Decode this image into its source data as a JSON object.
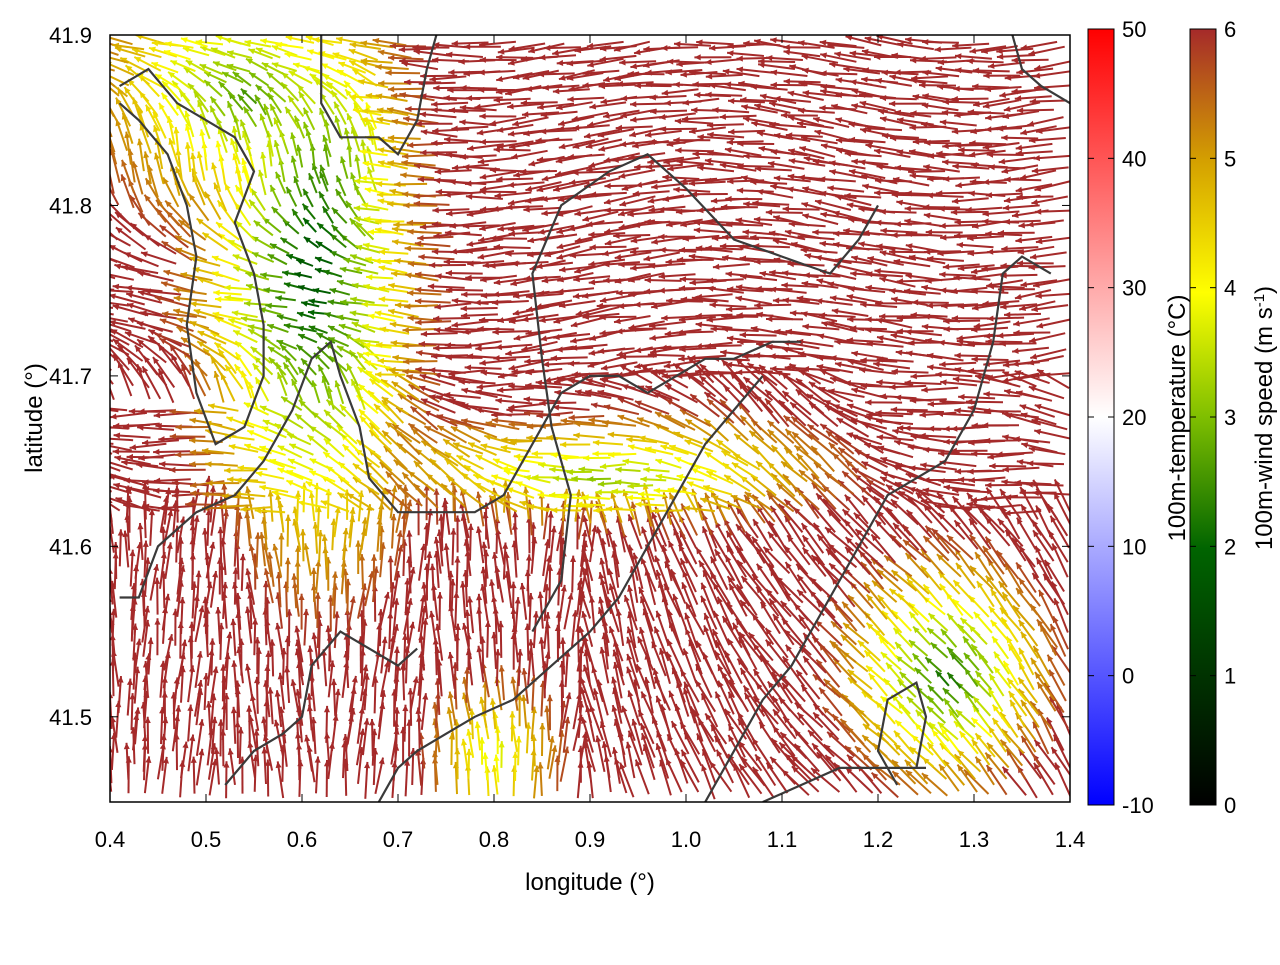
{
  "chart_data": {
    "type": "vector-field",
    "title": "",
    "xlabel": "longitude (°)",
    "ylabel": "latitude (°)",
    "xlim": [
      0.4,
      1.4
    ],
    "ylim": [
      41.45,
      41.9
    ],
    "xticks": [
      0.4,
      0.5,
      0.6,
      0.7,
      0.8,
      0.9,
      1.0,
      1.1,
      1.2,
      1.3,
      1.4
    ],
    "xtick_labels": [
      "0.4",
      "0.5",
      "0.6",
      "0.7",
      "0.8",
      "0.9",
      "1.0",
      "1.1",
      "1.2",
      "1.3",
      "1.4"
    ],
    "yticks": [
      41.5,
      41.6,
      41.7,
      41.8,
      41.9
    ],
    "ytick_labels": [
      "41.5",
      "41.6",
      "41.7",
      "41.8",
      "41.9"
    ],
    "grid": false,
    "colorbars": [
      {
        "label": "100m-temperature (°C)",
        "range": [
          -10,
          50
        ],
        "ticks": [
          -10,
          0,
          10,
          20,
          30,
          40,
          50
        ],
        "tick_labels": [
          "-10",
          "0",
          "10",
          "20",
          "30",
          "40",
          "50"
        ],
        "colors": [
          "#0000ff",
          "#ffffff",
          "#ff0000"
        ]
      },
      {
        "label_main": "100m-wind speed (m s",
        "label_sup": "-1",
        "label_end": ")",
        "range": [
          0,
          6
        ],
        "ticks": [
          0,
          1,
          2,
          3,
          4,
          5,
          6
        ],
        "tick_labels": [
          "0",
          "1",
          "2",
          "3",
          "4",
          "5",
          "6"
        ],
        "colors": [
          "#000000",
          "#006400",
          "#7fbf00",
          "#ffff00",
          "#d4a000",
          "#a52a2a"
        ]
      }
    ],
    "background_temperature_c": 20,
    "contour_color": "#3a3a3a",
    "contours": [
      [
        [
          0.41,
          41.87
        ],
        [
          0.44,
          41.88
        ],
        [
          0.47,
          41.86
        ],
        [
          0.5,
          41.85
        ],
        [
          0.53,
          41.84
        ],
        [
          0.55,
          41.82
        ],
        [
          0.53,
          41.79
        ],
        [
          0.55,
          41.76
        ],
        [
          0.56,
          41.73
        ],
        [
          0.56,
          41.7
        ],
        [
          0.54,
          41.67
        ],
        [
          0.51,
          41.66
        ],
        [
          0.49,
          41.69
        ],
        [
          0.48,
          41.73
        ],
        [
          0.49,
          41.77
        ],
        [
          0.48,
          41.8
        ],
        [
          0.46,
          41.83
        ],
        [
          0.43,
          41.85
        ],
        [
          0.41,
          41.86
        ]
      ],
      [
        [
          0.62,
          41.9
        ],
        [
          0.62,
          41.86
        ],
        [
          0.64,
          41.84
        ],
        [
          0.68,
          41.84
        ],
        [
          0.7,
          41.83
        ],
        [
          0.72,
          41.85
        ],
        [
          0.73,
          41.88
        ],
        [
          0.74,
          41.9
        ]
      ],
      [
        [
          0.84,
          41.55
        ],
        [
          0.87,
          41.58
        ],
        [
          0.88,
          41.63
        ],
        [
          0.86,
          41.67
        ],
        [
          0.85,
          41.71
        ],
        [
          0.84,
          41.76
        ],
        [
          0.87,
          41.8
        ],
        [
          0.92,
          41.82
        ],
        [
          0.96,
          41.83
        ],
        [
          1.0,
          41.81
        ],
        [
          1.05,
          41.78
        ],
        [
          1.1,
          41.77
        ],
        [
          1.15,
          41.76
        ],
        [
          1.18,
          41.78
        ],
        [
          1.2,
          41.8
        ]
      ],
      [
        [
          0.41,
          41.57
        ],
        [
          0.43,
          41.57
        ],
        [
          0.45,
          41.6
        ],
        [
          0.49,
          41.62
        ],
        [
          0.53,
          41.63
        ],
        [
          0.56,
          41.65
        ],
        [
          0.59,
          41.68
        ],
        [
          0.61,
          41.71
        ],
        [
          0.63,
          41.72
        ],
        [
          0.64,
          41.7
        ],
        [
          0.66,
          41.67
        ],
        [
          0.67,
          41.64
        ],
        [
          0.7,
          41.62
        ],
        [
          0.74,
          41.62
        ],
        [
          0.78,
          41.62
        ],
        [
          0.81,
          41.63
        ],
        [
          0.84,
          41.66
        ],
        [
          0.87,
          41.69
        ],
        [
          0.9,
          41.7
        ],
        [
          0.93,
          41.7
        ],
        [
          0.96,
          41.69
        ],
        [
          0.99,
          41.7
        ],
        [
          1.02,
          41.71
        ],
        [
          1.05,
          41.71
        ],
        [
          1.09,
          41.72
        ],
        [
          1.12,
          41.72
        ]
      ],
      [
        [
          0.52,
          41.46
        ],
        [
          0.55,
          41.48
        ],
        [
          0.58,
          41.49
        ],
        [
          0.6,
          41.5
        ],
        [
          0.61,
          41.53
        ],
        [
          0.64,
          41.55
        ],
        [
          0.67,
          41.54
        ],
        [
          0.7,
          41.53
        ],
        [
          0.72,
          41.54
        ]
      ],
      [
        [
          0.68,
          41.45
        ],
        [
          0.7,
          41.47
        ],
        [
          0.72,
          41.48
        ],
        [
          0.75,
          41.49
        ],
        [
          0.78,
          41.5
        ],
        [
          0.82,
          41.51
        ],
        [
          0.86,
          41.53
        ],
        [
          0.9,
          41.55
        ],
        [
          0.93,
          41.57
        ],
        [
          0.96,
          41.6
        ],
        [
          0.99,
          41.63
        ],
        [
          1.02,
          41.66
        ],
        [
          1.05,
          41.68
        ],
        [
          1.08,
          41.7
        ]
      ],
      [
        [
          1.02,
          41.45
        ],
        [
          1.05,
          41.48
        ],
        [
          1.08,
          41.51
        ],
        [
          1.11,
          41.53
        ],
        [
          1.14,
          41.56
        ],
        [
          1.17,
          41.59
        ],
        [
          1.19,
          41.61
        ],
        [
          1.21,
          41.63
        ],
        [
          1.24,
          41.64
        ],
        [
          1.27,
          41.65
        ],
        [
          1.3,
          41.68
        ],
        [
          1.32,
          41.72
        ],
        [
          1.33,
          41.76
        ],
        [
          1.35,
          41.77
        ],
        [
          1.38,
          41.76
        ]
      ],
      [
        [
          1.24,
          41.47
        ],
        [
          1.25,
          41.5
        ],
        [
          1.24,
          41.52
        ],
        [
          1.21,
          41.51
        ],
        [
          1.2,
          41.48
        ],
        [
          1.22,
          41.46
        ]
      ],
      [
        [
          1.08,
          41.45
        ],
        [
          1.12,
          41.46
        ],
        [
          1.16,
          41.47
        ],
        [
          1.2,
          41.47
        ],
        [
          1.25,
          41.47
        ]
      ],
      [
        [
          1.34,
          41.9
        ],
        [
          1.35,
          41.88
        ],
        [
          1.37,
          41.87
        ],
        [
          1.4,
          41.86
        ]
      ]
    ]
  }
}
